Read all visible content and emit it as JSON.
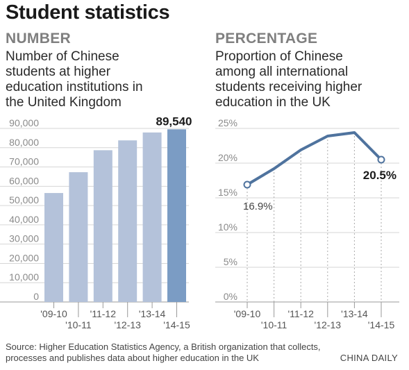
{
  "title": "Student statistics",
  "left_panel": {
    "kicker": "NUMBER",
    "subtitle_lines": [
      "Number of Chinese",
      "students at higher",
      "education institutions in",
      "the United Kingdom"
    ]
  },
  "right_panel": {
    "kicker": "PERCENTAGE",
    "subtitle_lines": [
      "Proportion of Chinese",
      "among all international",
      "students receiving higher",
      "education in the UK"
    ]
  },
  "source": "Source: Higher Education Statistics Agency, a British organization that collects, processes and publishes data about higher education in the UK",
  "credit": "CHINA DAILY",
  "colors": {
    "bar": "#b4c2da",
    "bar_highlight": "#7b9cc4",
    "line": "#4f739e"
  },
  "chart_data": [
    {
      "type": "bar",
      "categories": [
        "'09-10",
        "'10-11",
        "'11-12",
        "'12-13",
        "'13-14",
        "'14-15"
      ],
      "values": [
        56500,
        67300,
        78700,
        83800,
        87900,
        89540
      ],
      "ylim": [
        0,
        90000
      ],
      "yticks": [
        0,
        10000,
        20000,
        30000,
        40000,
        50000,
        60000,
        70000,
        80000,
        90000
      ],
      "ytick_labels": [
        "0",
        "10,000",
        "20,000",
        "30,000",
        "40,000",
        "50,000",
        "60,000",
        "70,000",
        "80,000",
        "90,000"
      ],
      "highlight_index": 5,
      "data_labels": [
        {
          "index": 5,
          "text": "89,540"
        }
      ],
      "grid": true
    },
    {
      "type": "line",
      "categories": [
        "'09-10",
        "'10-11",
        "'11-12",
        "'12-13",
        "'13-14",
        "'14-15"
      ],
      "values": [
        16.9,
        19.2,
        21.9,
        23.9,
        24.4,
        20.5
      ],
      "ylim": [
        0,
        25
      ],
      "yticks": [
        0,
        5,
        10,
        15,
        20,
        25
      ],
      "ytick_labels": [
        "0%",
        "5%",
        "10%",
        "15%",
        "20%",
        "25%"
      ],
      "data_labels": [
        {
          "index": 0,
          "text": "16.9%"
        },
        {
          "index": 5,
          "text": "20.5%"
        }
      ],
      "grid": true
    }
  ]
}
